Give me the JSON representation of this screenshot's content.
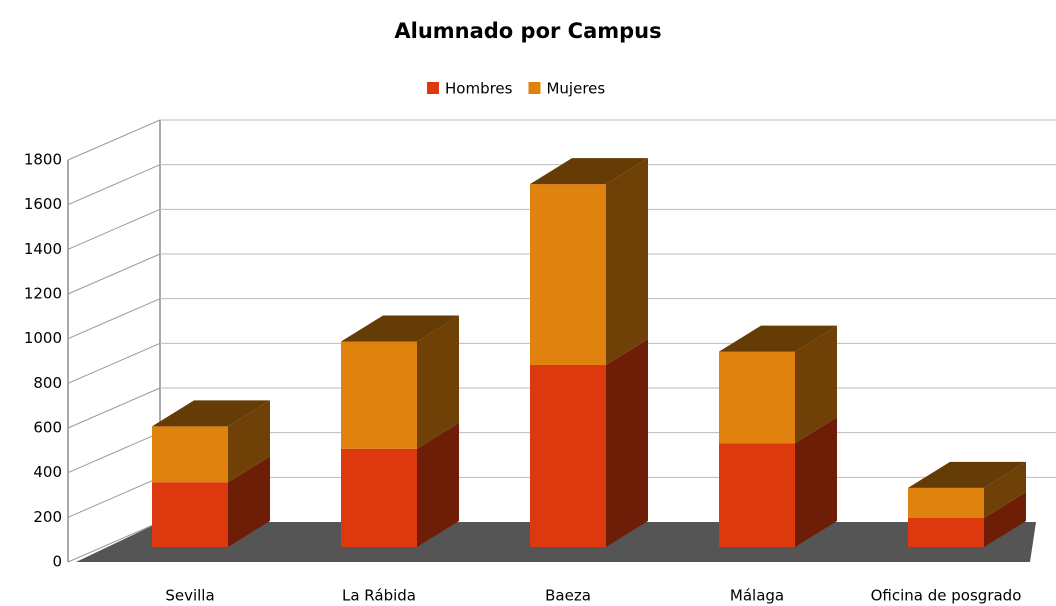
{
  "chart_data": {
    "type": "bar3d_stacked",
    "title": "Alumnado por Campus",
    "categories": [
      "Sevilla",
      "La Rábida",
      "Baeza",
      "Málaga",
      "Oficina de posgrado"
    ],
    "series": [
      {
        "name": "Hombres",
        "color": "#dc3a0e",
        "values": [
          290,
          440,
          815,
          465,
          130
        ]
      },
      {
        "name": "Mujeres",
        "color": "#e0820e",
        "values": [
          250,
          480,
          810,
          410,
          135
        ]
      }
    ],
    "ylim": [
      0,
      1800
    ],
    "yticks": [
      0,
      200,
      400,
      600,
      800,
      1000,
      1200,
      1400,
      1600,
      1800
    ],
    "grid": true,
    "legend": "top"
  }
}
